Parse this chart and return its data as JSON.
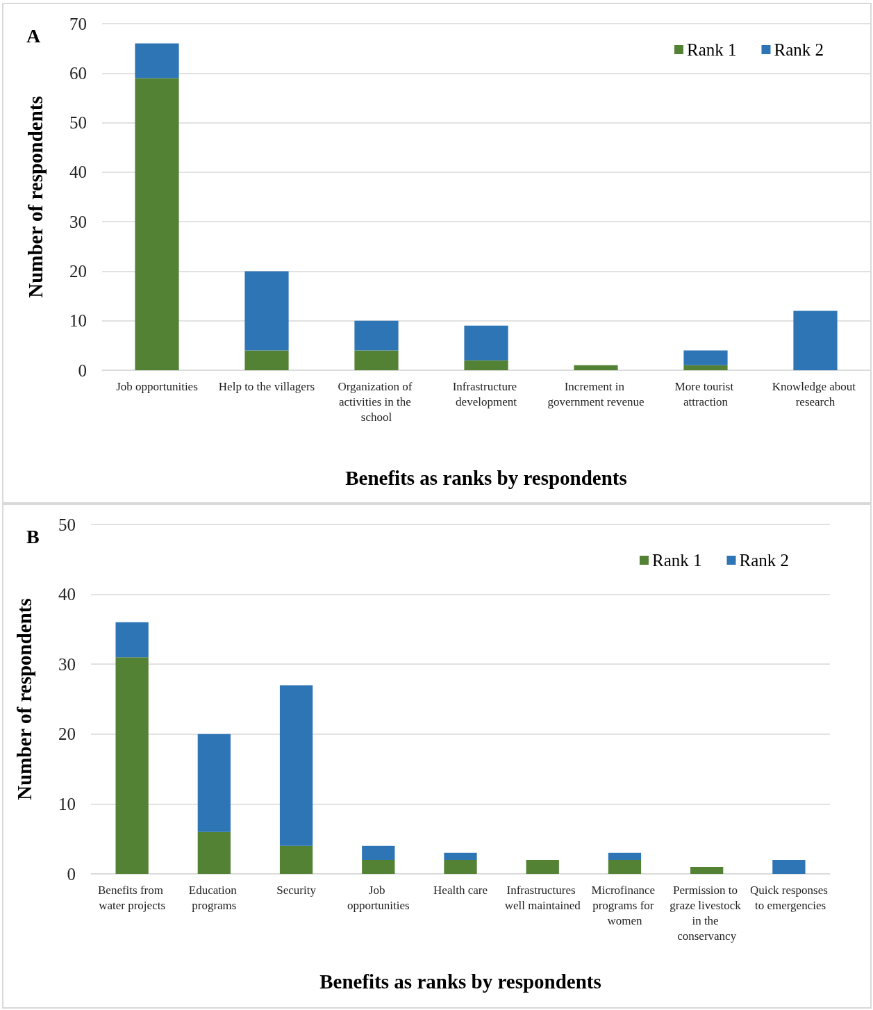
{
  "chart_data": [
    {
      "type": "bar",
      "title": "A",
      "xlabel": "Benefits as ranks by respondents",
      "ylabel": "Number of respondents",
      "categories": [
        "Job opportunities",
        "Help to the villagers",
        "Organization of activities in the school",
        "Infrastructure development",
        "Increment in government revenue",
        "More tourist attraction",
        "Knowledge about research"
      ],
      "series": [
        {
          "name": "Rank 1",
          "color": "#548235",
          "values": [
            59,
            4,
            4,
            2,
            1,
            1,
            0
          ]
        },
        {
          "name": "Rank 2",
          "color": "#2e75b6",
          "values": [
            7,
            16,
            6,
            7,
            0,
            3,
            12
          ]
        }
      ],
      "stacked": true,
      "ylim": [
        0,
        70
      ],
      "yticks": [
        0,
        10,
        20,
        30,
        40,
        50,
        60,
        70
      ],
      "grid": "y",
      "legend": "top right"
    },
    {
      "type": "bar",
      "title": "B",
      "xlabel": "Benefits as ranks by respondents",
      "ylabel": "Number of respondents",
      "categories": [
        "Benefits from water projects",
        "Education programs",
        "Security",
        "Job opportunities",
        "Health care",
        "Infrastructures well maintained",
        "Microfinance programs for women",
        "Permission to graze livestock in the conservancy",
        "Quick responses to emergencies"
      ],
      "series": [
        {
          "name": "Rank 1",
          "color": "#548235",
          "values": [
            31,
            6,
            4,
            2,
            2,
            2,
            2,
            1,
            0
          ]
        },
        {
          "name": "Rank 2",
          "color": "#2e75b6",
          "values": [
            5,
            14,
            23,
            2,
            1,
            0,
            1,
            0,
            2
          ]
        }
      ],
      "stacked": true,
      "ylim": [
        0,
        50
      ],
      "yticks": [
        0,
        10,
        20,
        30,
        40,
        50
      ],
      "grid": "y",
      "legend": "top right"
    }
  ]
}
